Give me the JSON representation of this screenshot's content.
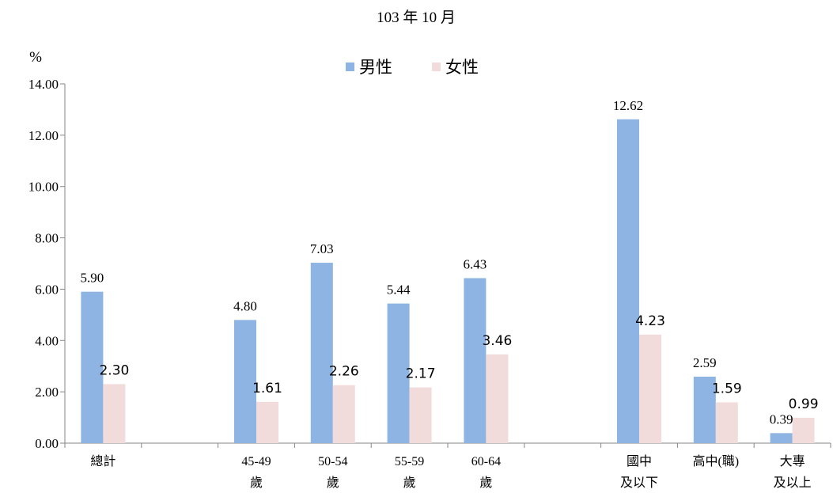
{
  "chart_data": {
    "type": "bar",
    "title": "103 年 10 月",
    "ylabel": "%",
    "ylim": [
      0,
      14
    ],
    "yticks": [
      "0.00",
      "2.00",
      "4.00",
      "6.00",
      "8.00",
      "10.00",
      "12.00",
      "14.00"
    ],
    "grid": false,
    "legend_position": "top-center",
    "categories": [
      [
        "總計"
      ],
      [],
      [
        "45-49",
        "歲"
      ],
      [
        "50-54",
        "歲"
      ],
      [
        "55-59",
        "歲"
      ],
      [
        "60-64",
        "歲"
      ],
      [],
      [
        "國中",
        "及以下"
      ],
      [
        "高中(職)"
      ],
      [
        "大專",
        "及以上"
      ]
    ],
    "series": [
      {
        "name": "男性",
        "color": "#8eb4e3",
        "values": [
          5.9,
          null,
          4.8,
          7.03,
          5.44,
          6.43,
          null,
          12.62,
          2.59,
          0.39
        ],
        "labels": [
          "5.90",
          "",
          "4.80",
          "7.03",
          "5.44",
          "6.43",
          "",
          "12.62",
          "2.59",
          "0.39"
        ]
      },
      {
        "name": "女性",
        "color": "#f2dcdb",
        "values": [
          2.3,
          null,
          1.61,
          2.26,
          2.17,
          3.46,
          null,
          4.23,
          1.59,
          0.99
        ],
        "labels": [
          "2.30",
          "",
          "1.61",
          "2.26",
          "2.17",
          "3.46",
          "",
          "4.23",
          "1.59",
          "0.99"
        ]
      }
    ]
  }
}
